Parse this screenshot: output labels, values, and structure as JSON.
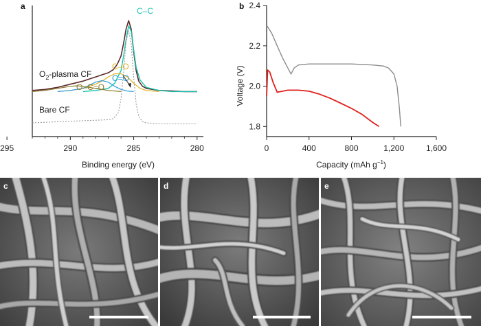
{
  "panels": {
    "a": {
      "label": "a",
      "xlabel": "Binding energy (eV)",
      "xticks": [
        "295",
        "290",
        "285",
        "280"
      ],
      "annotations": {
        "cc": "C–C",
        "co": "C–O",
        "c_eq_o": "C=O",
        "o_c_eq_o": "O–C=O",
        "o2_plasma_prefix": "O",
        "o2_plasma_sub": "2",
        "o2_plasma_suffix": "-plasma CF",
        "bare": "Bare CF"
      }
    },
    "b": {
      "label": "b",
      "ylabel": "Voltage (V)",
      "xlabel_main": "Capacity (mAh g",
      "xlabel_sup": "−1",
      "xlabel_end": ")",
      "yticks": [
        "2.4",
        "2.2",
        "2.0",
        "1.8"
      ],
      "xticks": [
        "0",
        "400",
        "800",
        "1,200",
        "1,600"
      ]
    },
    "c": {
      "label": "c"
    },
    "d": {
      "label": "d"
    },
    "e": {
      "label": "e"
    }
  },
  "colors": {
    "axis": "#222222",
    "o2_plasma_curve": "#5b2a2a",
    "cc_peak": "#19c3b0",
    "co_peak": "#e0b020",
    "c_eq_o_peak": "#2a9be0",
    "o_c_eq_o_peak": "#8a7a2a",
    "bare_curve": "#999999",
    "discharge_gray": "#8c8c8c",
    "discharge_red": "#e0201a",
    "scale_bar": "#ffffff"
  },
  "chart_data": [
    {
      "panel": "a",
      "type": "line",
      "xlabel": "Binding energy (eV)",
      "ylabel": "",
      "xlim": [
        293,
        279.5
      ],
      "x_reversed": true,
      "yaxis_ticks": false,
      "series": [
        {
          "name": "O2-plasma CF",
          "x": [
            293,
            292,
            291,
            290,
            289,
            288.5,
            288,
            287.5,
            287,
            286.6,
            286.3,
            286,
            285.8,
            285.6,
            285.4,
            285.2,
            285,
            284.8,
            284.6,
            284.3,
            284,
            283.5,
            283,
            282,
            281,
            280
          ],
          "y": [
            0.33,
            0.34,
            0.36,
            0.39,
            0.42,
            0.44,
            0.46,
            0.48,
            0.5,
            0.53,
            0.58,
            0.66,
            0.78,
            0.92,
            1.0,
            0.92,
            0.7,
            0.52,
            0.42,
            0.37,
            0.35,
            0.34,
            0.33,
            0.325,
            0.32,
            0.32
          ]
        },
        {
          "name": "C–C",
          "x": [
            289,
            288,
            287,
            286.5,
            286,
            285.8,
            285.6,
            285.4,
            285.2,
            285,
            284.8,
            284.5,
            284,
            283,
            282,
            281,
            280
          ],
          "y": [
            0.32,
            0.33,
            0.35,
            0.4,
            0.52,
            0.66,
            0.82,
            0.95,
            0.9,
            0.72,
            0.55,
            0.43,
            0.36,
            0.33,
            0.32,
            0.32,
            0.32
          ]
        },
        {
          "name": "C–O",
          "x": [
            291,
            290,
            289,
            288.5,
            288,
            287.5,
            287,
            286.5,
            286,
            285.5,
            285,
            284.5,
            284,
            283
          ],
          "y": [
            0.32,
            0.33,
            0.35,
            0.37,
            0.39,
            0.42,
            0.46,
            0.49,
            0.49,
            0.46,
            0.4,
            0.35,
            0.33,
            0.32
          ]
        },
        {
          "name": "C=O",
          "x": [
            291,
            290,
            289,
            288.5,
            288,
            287.5,
            287,
            286.5,
            286,
            285.5,
            285
          ],
          "y": [
            0.32,
            0.33,
            0.35,
            0.38,
            0.41,
            0.425,
            0.41,
            0.37,
            0.34,
            0.325,
            0.32
          ]
        },
        {
          "name": "O–C=O",
          "x": [
            293,
            292,
            291,
            290,
            289.5,
            289,
            288.5,
            288,
            287.5,
            287,
            286
          ],
          "y": [
            0.32,
            0.33,
            0.35,
            0.37,
            0.375,
            0.37,
            0.36,
            0.35,
            0.34,
            0.33,
            0.32
          ]
        },
        {
          "name": "Bare CF",
          "x": [
            293,
            292,
            291,
            290,
            289,
            288,
            287,
            286.6,
            286.2,
            286,
            285.8,
            285.6,
            285.4,
            285.2,
            285,
            284.8,
            284.6,
            284.3,
            284,
            283.5,
            283,
            282,
            281,
            280
          ],
          "y": [
            0.02,
            0.025,
            0.03,
            0.035,
            0.04,
            0.045,
            0.05,
            0.06,
            0.12,
            0.25,
            0.5,
            0.8,
            0.9,
            0.78,
            0.45,
            0.2,
            0.08,
            0.03,
            0.02,
            0.015,
            0.01,
            0.01,
            0.01,
            0.01
          ]
        }
      ]
    },
    {
      "panel": "b",
      "type": "line",
      "xlabel": "Capacity (mAh g−1)",
      "ylabel": "Voltage (V)",
      "xlim": [
        0,
        1600
      ],
      "ylim": [
        1.75,
        2.4
      ],
      "series": [
        {
          "x": [
            0,
            10,
            50,
            100,
            150,
            200,
            230,
            260,
            300,
            400,
            600,
            800,
            1000,
            1100,
            1150,
            1200,
            1230,
            1250,
            1265
          ],
          "y": [
            2.3,
            2.295,
            2.26,
            2.2,
            2.14,
            2.09,
            2.06,
            2.09,
            2.105,
            2.11,
            2.11,
            2.11,
            2.105,
            2.1,
            2.09,
            2.06,
            2.0,
            1.9,
            1.8
          ]
        },
        {
          "x": [
            0,
            10,
            30,
            60,
            100,
            150,
            200,
            300,
            400,
            500,
            600,
            700,
            800,
            900,
            1000,
            1060
          ],
          "y": [
            1.95,
            2.08,
            2.07,
            2.02,
            1.97,
            1.975,
            1.98,
            1.98,
            1.975,
            1.96,
            1.94,
            1.915,
            1.89,
            1.86,
            1.82,
            1.8
          ]
        }
      ]
    }
  ]
}
